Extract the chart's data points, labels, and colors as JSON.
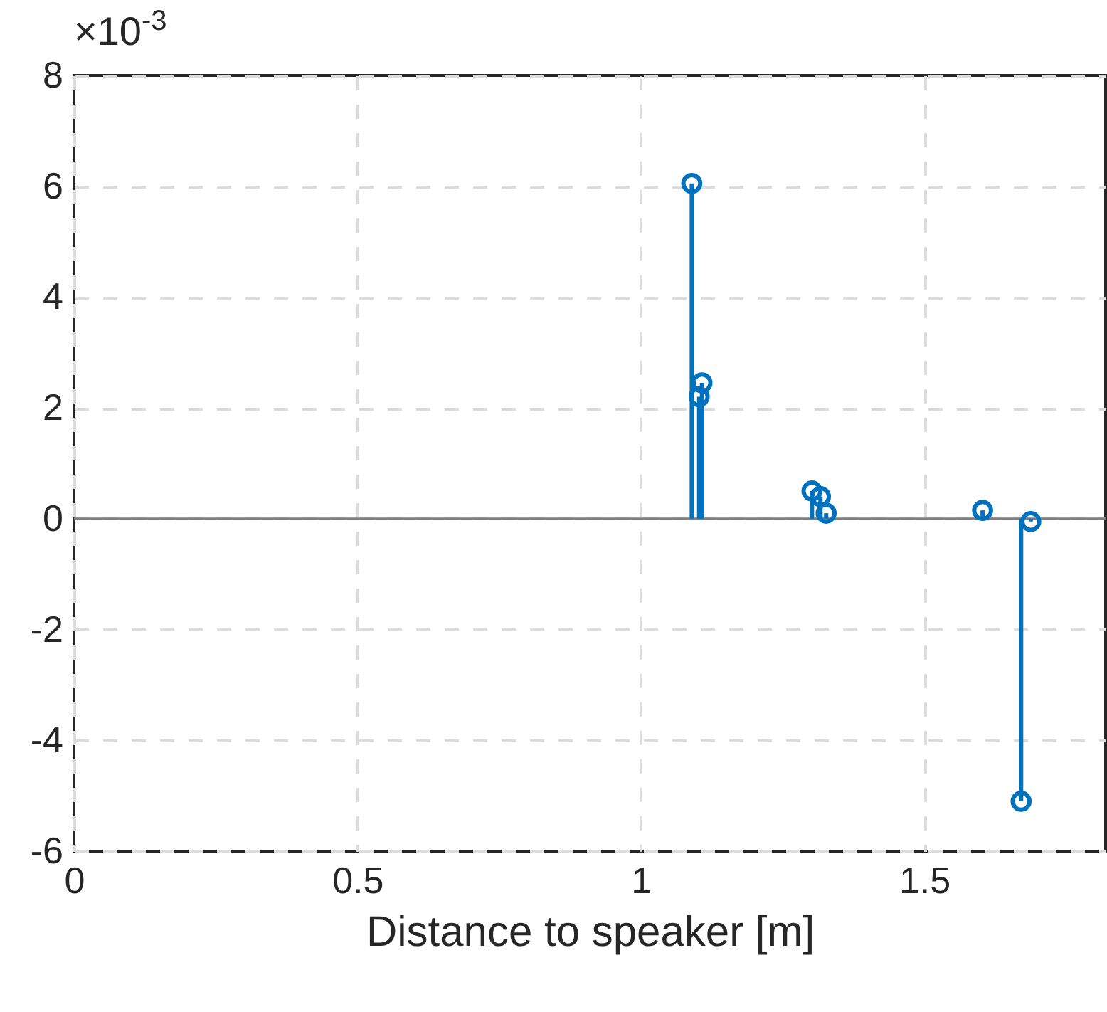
{
  "chart_data": {
    "type": "lollipop",
    "xlabel": "Distance to speaker [m]",
    "x": [
      1.09,
      1.108,
      1.103,
      1.302,
      1.317,
      1.327,
      1.603,
      1.688,
      1.671
    ],
    "values": [
      6.05,
      2.45,
      2.2,
      0.5,
      0.4,
      0.1,
      0.15,
      -0.05,
      -5.1
    ],
    "color": "#0072bd",
    "marker": "circle",
    "xlim": [
      0,
      1.82
    ],
    "xticks": [
      0,
      0.5,
      1,
      1.5
    ],
    "ylim": [
      -6,
      8
    ],
    "yticks": [
      -6,
      -4,
      -2,
      0,
      2,
      4,
      6,
      8
    ],
    "annotations": [
      "×10$^{-3}$"
    ],
    "grid": true
  }
}
